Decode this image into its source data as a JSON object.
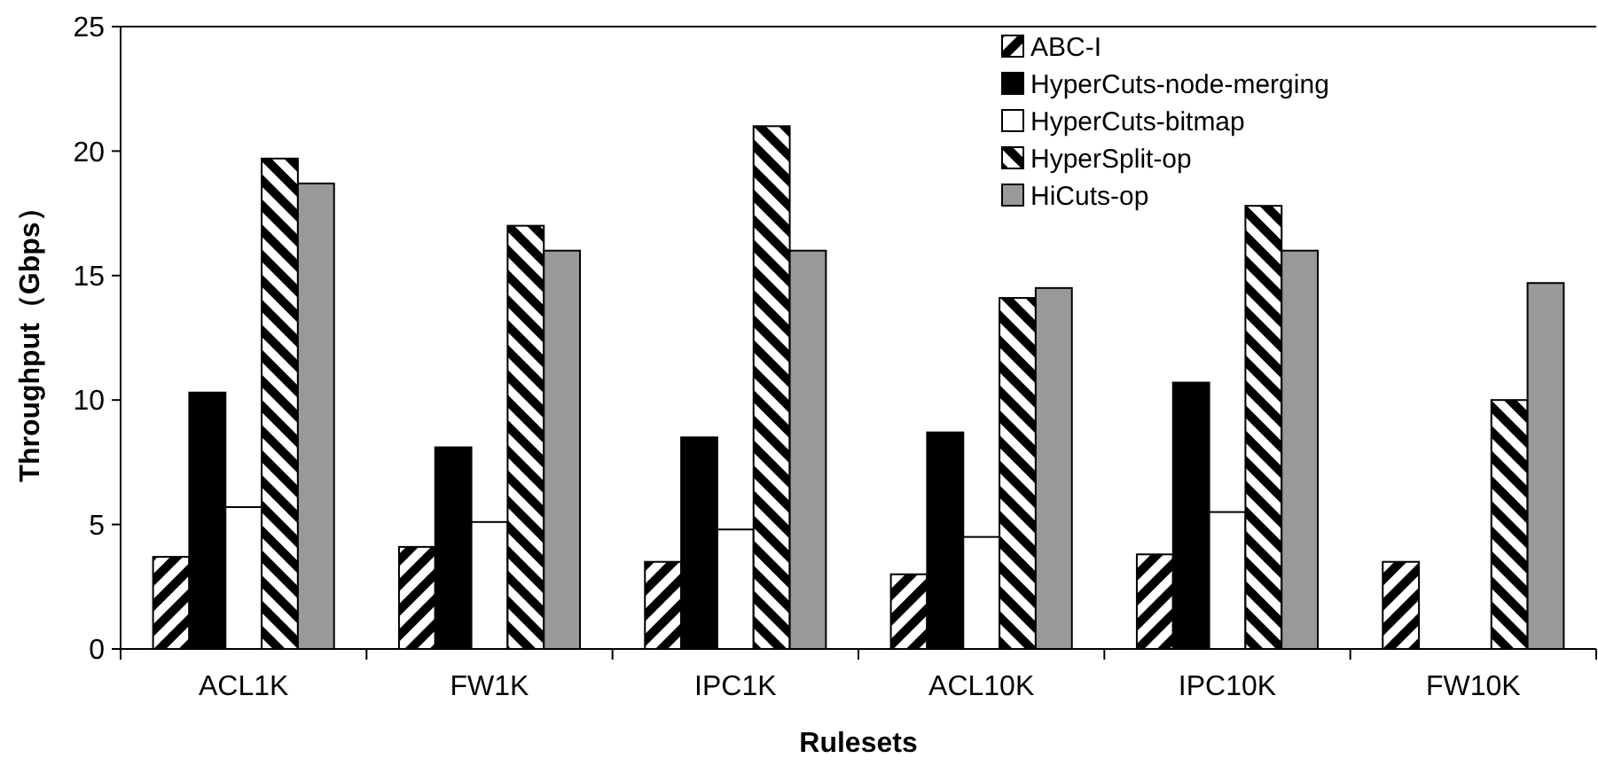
{
  "chart_data": {
    "type": "bar",
    "xlabel": "Rulesets",
    "ylabel": "Throughput（Gbps）",
    "categories": [
      "ACL1K",
      "FW1K",
      "IPC1K",
      "ACL10K",
      "IPC10K",
      "FW10K"
    ],
    "series": [
      {
        "name": "ABC-I",
        "color": "#000000",
        "values": [
          3.7,
          4.1,
          3.5,
          3.0,
          3.8,
          3.5
        ]
      },
      {
        "name": "HyperCuts-node-merging",
        "color": "#000000",
        "values": [
          10.3,
          8.1,
          8.5,
          8.7,
          10.7,
          null
        ]
      },
      {
        "name": "HyperCuts-bitmap",
        "color": "#ffffff",
        "values": [
          5.7,
          5.1,
          4.8,
          4.5,
          5.5,
          null
        ]
      },
      {
        "name": "HyperSplit-op",
        "color": "#000000",
        "values": [
          19.7,
          17.0,
          21.0,
          14.1,
          17.8,
          10.0
        ]
      },
      {
        "name": "HiCuts-op",
        "color": "#999999",
        "values": [
          18.7,
          16.0,
          16.0,
          14.5,
          16.0,
          14.7
        ]
      }
    ],
    "ylim": [
      0,
      25
    ],
    "yticks": [
      0,
      5,
      10,
      15,
      20,
      25
    ],
    "grid": false,
    "legend": "top right"
  }
}
